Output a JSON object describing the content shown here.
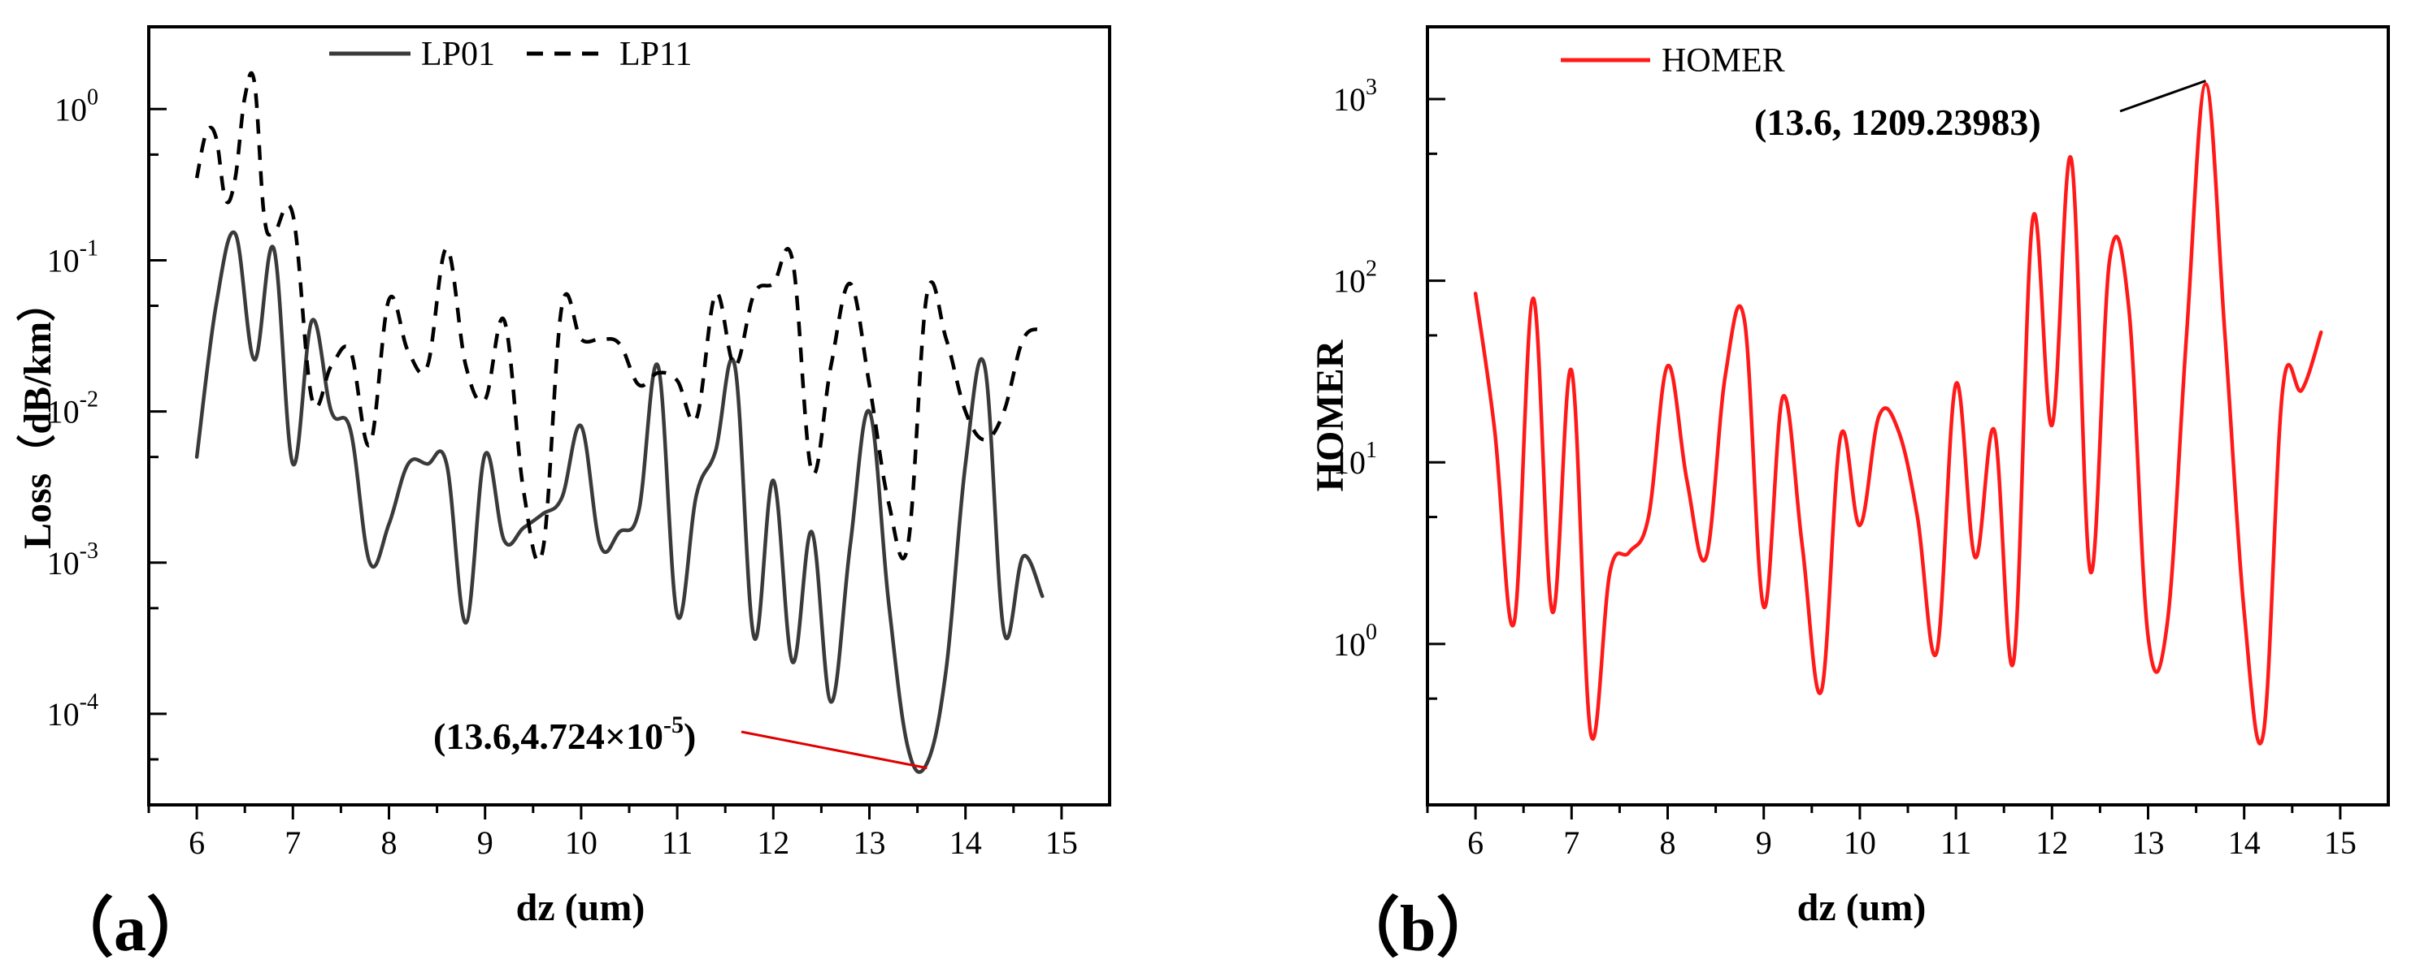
{
  "chart_data": [
    {
      "type": "line",
      "panel_label": "（a）",
      "xlabel": "dz (um)",
      "ylabel": "Loss（dB/km）",
      "yscale": "log",
      "xlim": [
        5.5,
        15.5
      ],
      "ylim": [
        2.5e-05,
        3.5
      ],
      "x_ticks": [
        6,
        7,
        8,
        9,
        10,
        11,
        12,
        13,
        14,
        15
      ],
      "y_ticks": [
        {
          "value": 1,
          "mant": "10",
          "exp": "0"
        },
        {
          "value": 0.1,
          "mant": "10",
          "exp": "-1"
        },
        {
          "value": 0.01,
          "mant": "10",
          "exp": "-2"
        },
        {
          "value": 0.001,
          "mant": "10",
          "exp": "-3"
        },
        {
          "value": 0.0001,
          "mant": "10",
          "exp": "-4"
        }
      ],
      "legend": [
        "LP01",
        "LP11"
      ],
      "series": [
        {
          "name": "LP01",
          "style": "solid",
          "color": "#3a3a3a",
          "x": [
            6.0,
            6.2,
            6.4,
            6.6,
            6.8,
            7.0,
            7.2,
            7.4,
            7.6,
            7.8,
            8.0,
            8.2,
            8.4,
            8.6,
            8.8,
            9.0,
            9.2,
            9.4,
            9.6,
            9.8,
            10.0,
            10.2,
            10.4,
            10.6,
            10.8,
            11.0,
            11.2,
            11.4,
            11.6,
            11.8,
            12.0,
            12.2,
            12.4,
            12.6,
            12.8,
            13.0,
            13.2,
            13.4,
            13.6,
            13.8,
            14.0,
            14.2,
            14.4,
            14.6,
            14.8
          ],
          "y": [
            0.005,
            0.05,
            0.15,
            0.022,
            0.12,
            0.0045,
            0.04,
            0.01,
            0.0075,
            0.001,
            0.0018,
            0.0045,
            0.0045,
            0.0045,
            0.0004,
            0.0052,
            0.0014,
            0.0017,
            0.0021,
            0.0027,
            0.008,
            0.0013,
            0.0016,
            0.0022,
            0.02,
            0.00045,
            0.0028,
            0.0055,
            0.02,
            0.00032,
            0.0035,
            0.00022,
            0.0016,
            0.00012,
            0.0013,
            0.01,
            0.00055,
            6e-05,
            4.724e-05,
            0.0002,
            0.0045,
            0.02,
            0.00035,
            0.0011,
            0.0006
          ]
        },
        {
          "name": "LP11",
          "style": "dashed",
          "color": "#000000",
          "x": [
            6.0,
            6.1,
            6.2,
            6.3,
            6.4,
            6.5,
            6.6,
            6.7,
            6.8,
            7.0,
            7.2,
            7.4,
            7.6,
            7.8,
            8.0,
            8.2,
            8.4,
            8.6,
            8.8,
            9.0,
            9.2,
            9.4,
            9.6,
            9.8,
            10.0,
            10.2,
            10.4,
            10.6,
            10.8,
            11.0,
            11.2,
            11.4,
            11.6,
            11.8,
            12.0,
            12.2,
            12.4,
            12.6,
            12.8,
            13.0,
            13.2,
            13.4,
            13.6,
            13.8,
            14.0,
            14.2,
            14.4,
            14.6,
            14.8
          ],
          "y": [
            0.35,
            0.7,
            0.65,
            0.25,
            0.35,
            1.2,
            1.5,
            0.2,
            0.15,
            0.2,
            0.012,
            0.02,
            0.025,
            0.006,
            0.055,
            0.025,
            0.02,
            0.12,
            0.02,
            0.012,
            0.04,
            0.003,
            0.0012,
            0.05,
            0.03,
            0.03,
            0.028,
            0.015,
            0.018,
            0.016,
            0.009,
            0.06,
            0.02,
            0.06,
            0.07,
            0.1,
            0.004,
            0.02,
            0.07,
            0.015,
            0.0025,
            0.0013,
            0.06,
            0.03,
            0.01,
            0.0065,
            0.01,
            0.03,
            0.035
          ]
        }
      ],
      "annotation": {
        "x": 13.6,
        "y": 4.724e-05,
        "text_main": "(13.6,4.724×10",
        "text_exp": "-5",
        "text_close": ")"
      }
    },
    {
      "type": "line",
      "panel_label": "（b）",
      "xlabel": "dz (um)",
      "ylabel": "HOMER",
      "yscale": "log",
      "xlim": [
        5.5,
        15.5
      ],
      "ylim": [
        0.13,
        2500
      ],
      "x_ticks": [
        6,
        7,
        8,
        9,
        10,
        11,
        12,
        13,
        14,
        15
      ],
      "y_ticks": [
        {
          "value": 1000,
          "mant": "10",
          "exp": "3"
        },
        {
          "value": 100,
          "mant": "10",
          "exp": "2"
        },
        {
          "value": 10,
          "mant": "10",
          "exp": "1"
        },
        {
          "value": 1,
          "mant": "10",
          "exp": "0"
        }
      ],
      "legend": [
        "HOMER"
      ],
      "series": [
        {
          "name": "HOMER",
          "style": "solid",
          "color": "#ff1a1a",
          "x": [
            6.0,
            6.2,
            6.4,
            6.6,
            6.8,
            7.0,
            7.2,
            7.4,
            7.6,
            7.8,
            8.0,
            8.2,
            8.4,
            8.6,
            8.8,
            9.0,
            9.2,
            9.4,
            9.6,
            9.8,
            10.0,
            10.2,
            10.4,
            10.6,
            10.8,
            11.0,
            11.2,
            11.4,
            11.6,
            11.8,
            12.0,
            12.2,
            12.4,
            12.6,
            12.8,
            13.0,
            13.2,
            13.4,
            13.6,
            13.8,
            14.0,
            14.2,
            14.4,
            14.6,
            14.8
          ],
          "y": [
            85,
            15,
            1.3,
            80,
            1.5,
            32,
            0.32,
            2.5,
            3.2,
            5,
            34,
            8,
            3,
            30,
            60,
            1.6,
            23,
            3.5,
            0.55,
            14,
            4.5,
            18,
            15,
            5,
            0.9,
            27,
            3,
            15,
            0.8,
            220,
            16,
            470,
            2.5,
            130,
            70,
            1.1,
            1.3,
            50,
            1209.23983,
            50,
            1.5,
            0.32,
            25,
            25,
            52
          ]
        }
      ],
      "annotation": {
        "x": 13.6,
        "y": 1209.23983,
        "text_main": "(13.6, 1209.23983)"
      }
    }
  ]
}
